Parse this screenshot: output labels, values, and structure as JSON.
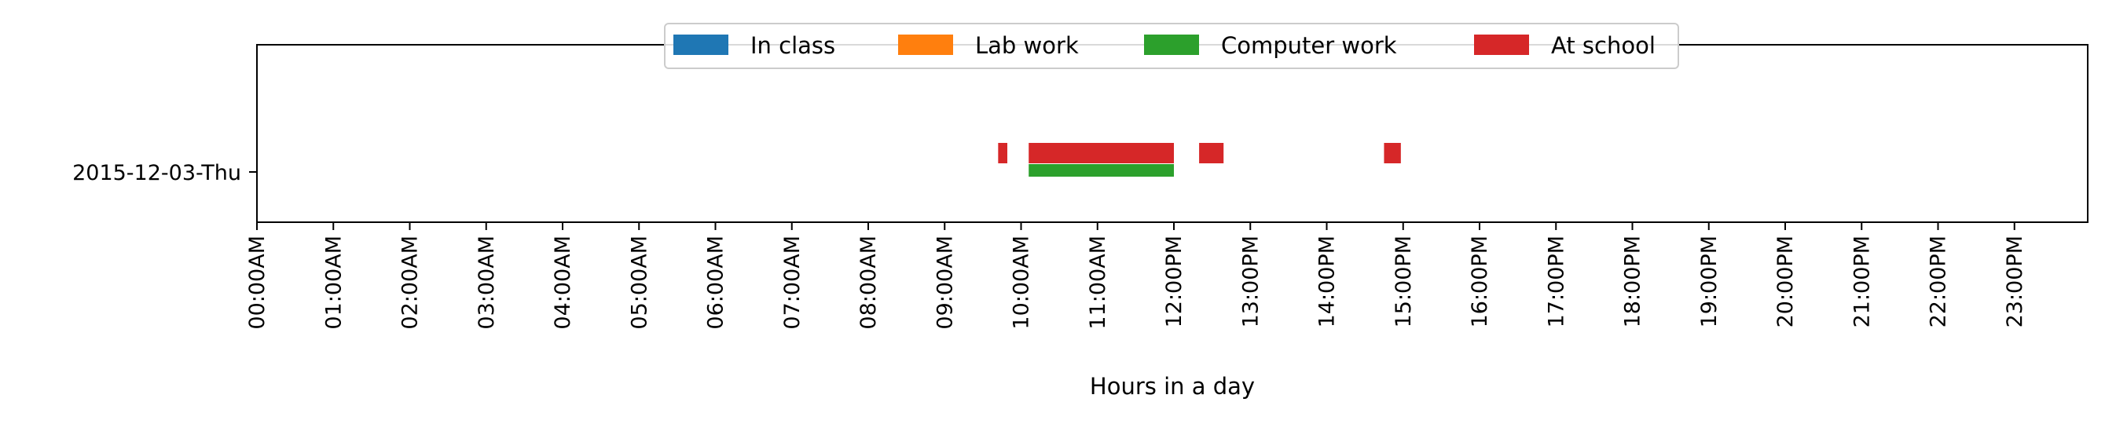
{
  "chart_data": {
    "type": "broken_barh",
    "xlabel": "Hours in a day",
    "ylabel": "",
    "xlim": [
      0,
      24
    ],
    "grid": false,
    "legend_position": "top-center",
    "categories": [
      "2015-12-03-Thu"
    ],
    "xtick_labels": [
      "00:00AM",
      "01:00AM",
      "02:00AM",
      "03:00AM",
      "04:00AM",
      "05:00AM",
      "06:00AM",
      "07:00AM",
      "08:00AM",
      "09:00AM",
      "10:00AM",
      "11:00AM",
      "12:00PM",
      "13:00PM",
      "14:00PM",
      "15:00PM",
      "16:00PM",
      "17:00PM",
      "18:00PM",
      "19:00PM",
      "20:00PM",
      "21:00PM",
      "22:00PM",
      "23:00PM"
    ],
    "series": [
      {
        "name": "In class",
        "color": "#1f77b4",
        "row": "upper",
        "intervals": []
      },
      {
        "name": "Lab work",
        "color": "#ff7f0e",
        "row": "upper",
        "intervals": []
      },
      {
        "name": "Computer work",
        "color": "#2ca02c",
        "row": "lower",
        "intervals": [
          {
            "category": "2015-12-03-Thu",
            "start": 10.1,
            "end": 12.0
          }
        ]
      },
      {
        "name": "At school",
        "color": "#d62728",
        "row": "upper",
        "intervals": [
          {
            "category": "2015-12-03-Thu",
            "start": 9.7,
            "end": 9.82
          },
          {
            "category": "2015-12-03-Thu",
            "start": 10.1,
            "end": 12.0
          },
          {
            "category": "2015-12-03-Thu",
            "start": 12.33,
            "end": 12.65
          },
          {
            "category": "2015-12-03-Thu",
            "start": 14.75,
            "end": 14.97
          }
        ]
      }
    ]
  }
}
